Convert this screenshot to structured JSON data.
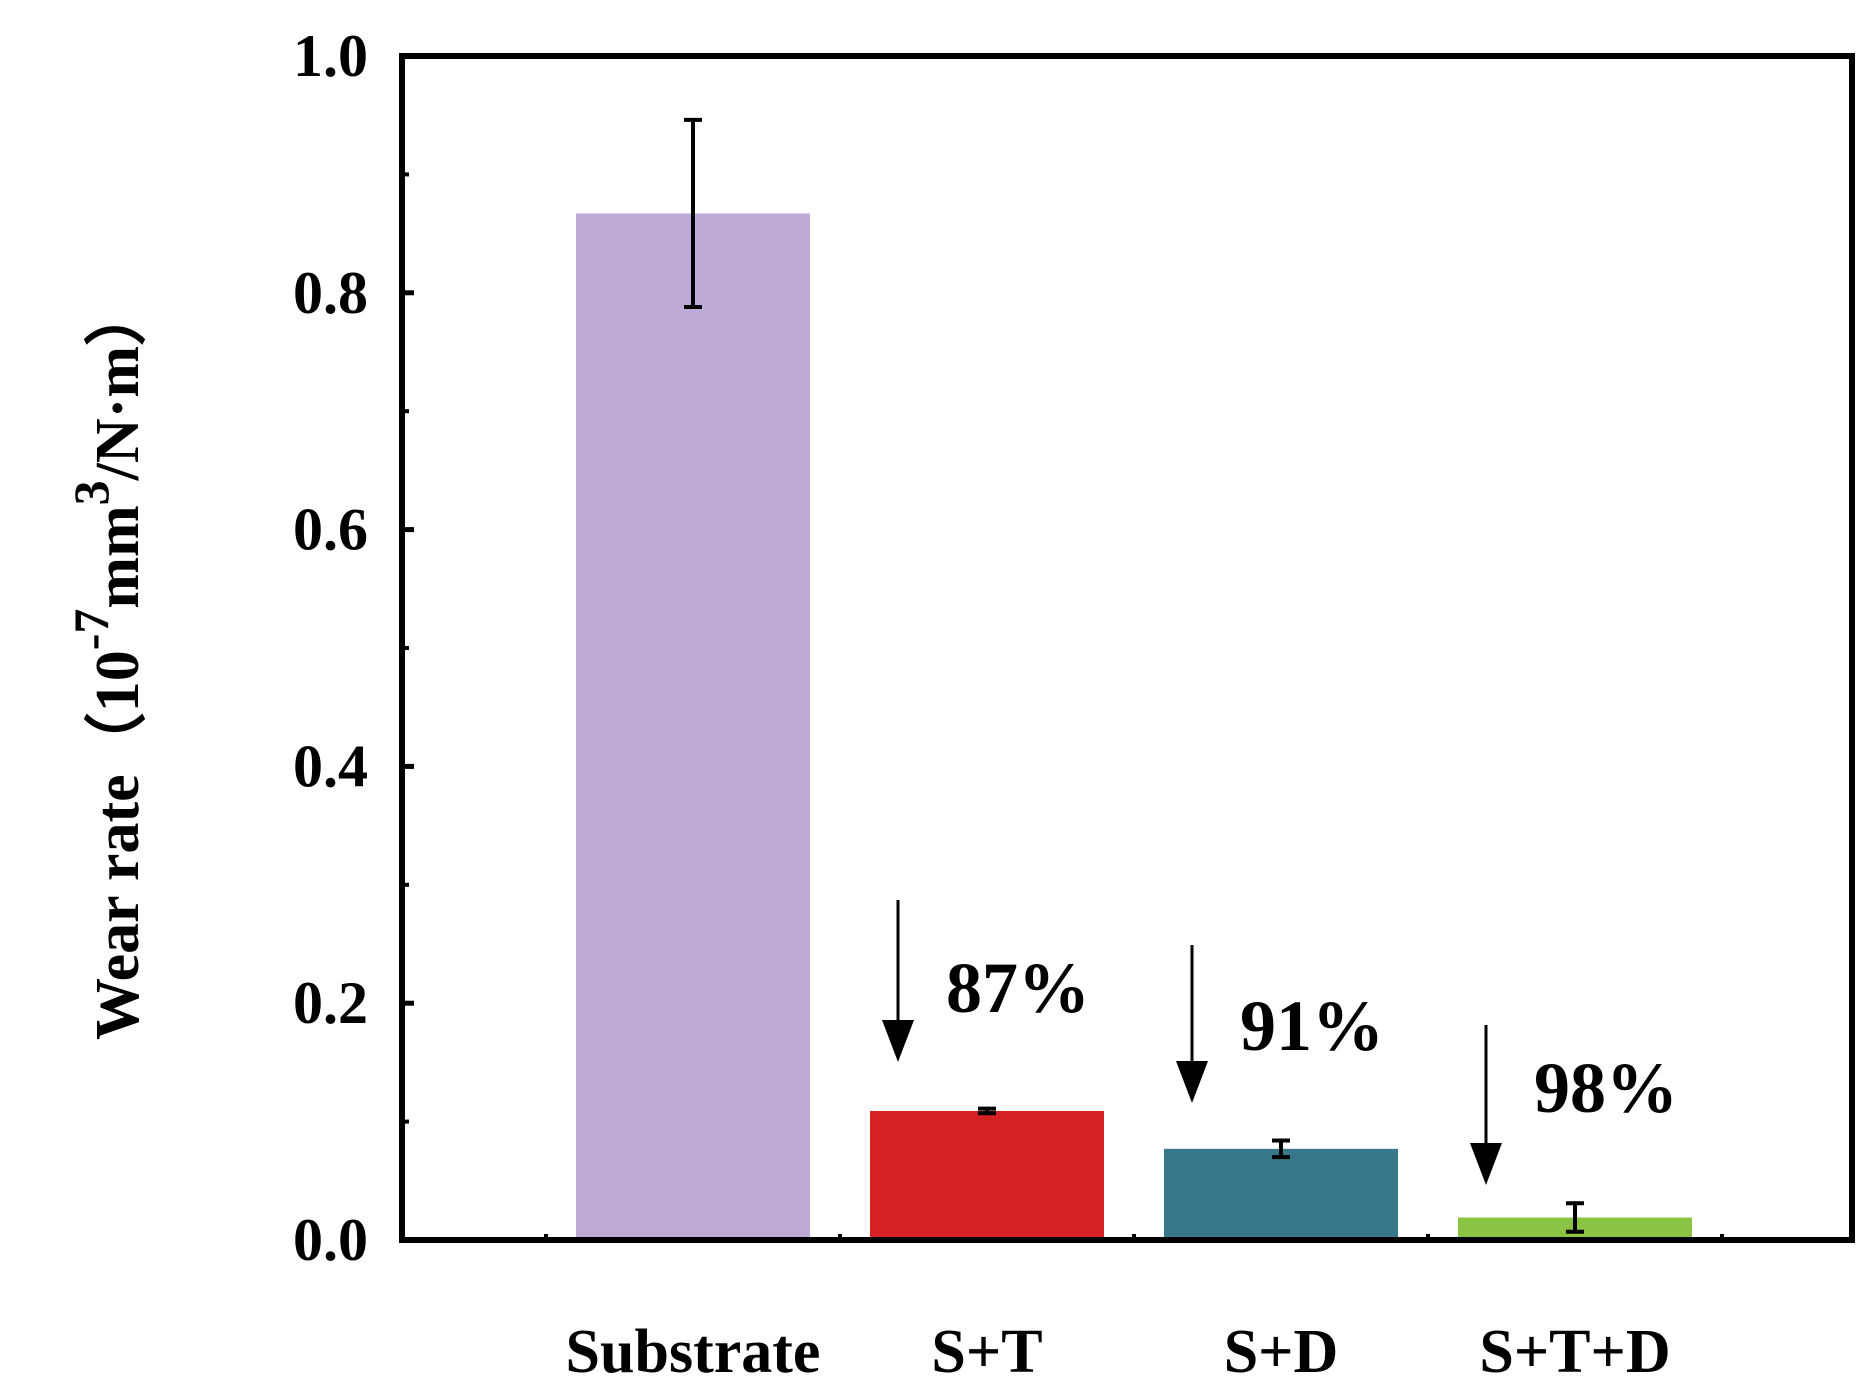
{
  "chart_data": {
    "type": "bar",
    "title": "",
    "xlabel": "",
    "ylabel": "Wear rate（10",
    "ylabel_parts": {
      "main": "Wear rate（10",
      "exp1": "-7",
      "unit": "mm",
      "exp2": "3",
      "tail": "/N·m）"
    },
    "categories": [
      "Substrate",
      "S+T",
      "S+D",
      "S+T+D"
    ],
    "values": [
      0.867,
      0.109,
      0.077,
      0.019
    ],
    "errors": [
      0.079,
      0.002,
      0.007,
      0.012
    ],
    "colors": [
      "#bdaad6",
      "#d52121",
      "#37788a",
      "#8bc443"
    ],
    "ylim": [
      0.0,
      1.0
    ],
    "yticks": [
      0.0,
      0.2,
      0.4,
      0.6,
      0.8,
      1.0
    ],
    "ytick_labels": [
      "0.0",
      "0.2",
      "0.4",
      "0.6",
      "0.8",
      "1.0"
    ],
    "annotations": [
      {
        "text": "87%",
        "category": "S+T"
      },
      {
        "text": "91%",
        "category": "S+D"
      },
      {
        "text": "98%",
        "category": "S+T+D"
      }
    ],
    "grid": false,
    "legend": "none"
  }
}
